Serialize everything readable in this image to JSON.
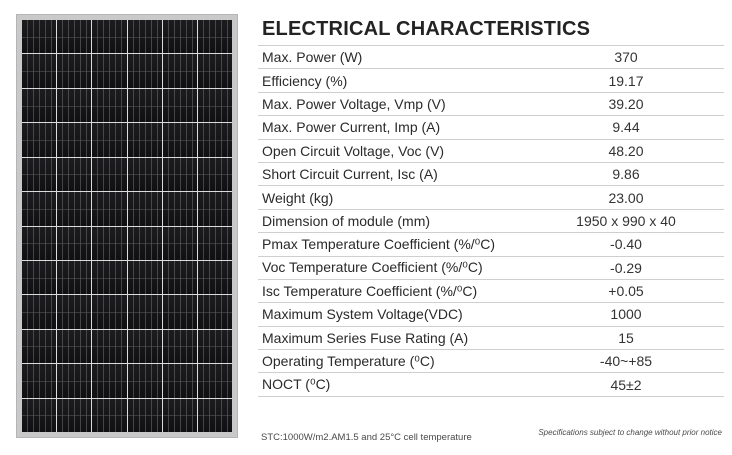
{
  "panel_image": {
    "icon": "solar-panel-image",
    "columns": 6,
    "rows": 12,
    "cell_color": "#131315",
    "frame_color": "#c9c9c9"
  },
  "title": "ELECTRICAL CHARACTERISTICS",
  "rows": [
    {
      "param": "Max. Power (W)",
      "value": "370"
    },
    {
      "param": "Efficiency (%)",
      "value": "19.17"
    },
    {
      "param": "Max. Power Voltage, Vmp (V)",
      "value": "39.20"
    },
    {
      "param": "Max. Power Current, Imp (A)",
      "value": "9.44"
    },
    {
      "param": "Open Circuit Voltage, Voc (V)",
      "value": "48.20"
    },
    {
      "param": "Short Circuit Current, Isc (A)",
      "value": "9.86"
    },
    {
      "param": "Weight (kg)",
      "value": "23.00"
    },
    {
      "param": "Dimension of module (mm)",
      "value": "1950 x 990 x 40"
    },
    {
      "param": "Pmax Temperature Coefficient (%/⁰C)",
      "value": "-0.40"
    },
    {
      "param": "Voc Temperature Coefficient (%/⁰C)",
      "value": "-0.29"
    },
    {
      "param": "Isc Temperature Coefficient (%/⁰C)",
      "value": "+0.05"
    },
    {
      "param": "Maximum System Voltage(VDC)",
      "value": "1000"
    },
    {
      "param": "Maximum Series Fuse Rating (A)",
      "value": "15"
    },
    {
      "param": "Operating Temperature (⁰C)",
      "value": "-40~+85"
    },
    {
      "param": "NOCT (⁰C)",
      "value": "45±2"
    }
  ],
  "footer": {
    "stc_note": "STC:1000W/m2.AM1.5 and 25°C cell temperature",
    "disclaimer": "Specifications subject to change without prior notice"
  }
}
